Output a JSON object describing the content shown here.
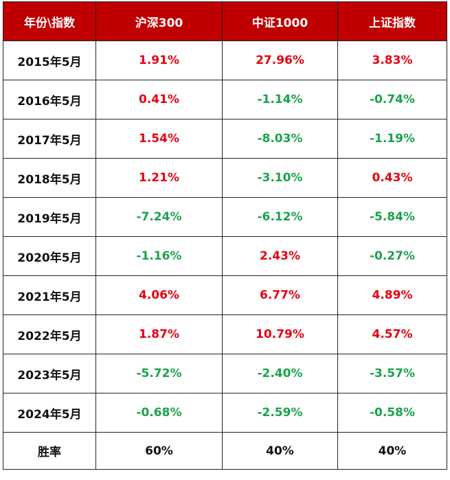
{
  "chart_data": {
    "type": "table",
    "columns": [
      "年份\\指数",
      "沪深300",
      "中证1000",
      "上证指数"
    ],
    "rows": [
      {
        "year": "2015年5月",
        "values": [
          "1.91%",
          "27.96%",
          "3.83%"
        ],
        "numeric": [
          1.91,
          27.96,
          3.83
        ]
      },
      {
        "year": "2016年5月",
        "values": [
          "0.41%",
          "-1.14%",
          "-0.74%"
        ],
        "numeric": [
          0.41,
          -1.14,
          -0.74
        ]
      },
      {
        "year": "2017年5月",
        "values": [
          "1.54%",
          "-8.03%",
          "-1.19%"
        ],
        "numeric": [
          1.54,
          -8.03,
          -1.19
        ]
      },
      {
        "year": "2018年5月",
        "values": [
          "1.21%",
          "-3.10%",
          "0.43%"
        ],
        "numeric": [
          1.21,
          -3.1,
          0.43
        ]
      },
      {
        "year": "2019年5月",
        "values": [
          "-7.24%",
          "-6.12%",
          "-5.84%"
        ],
        "numeric": [
          -7.24,
          -6.12,
          -5.84
        ]
      },
      {
        "year": "2020年5月",
        "values": [
          "-1.16%",
          "2.43%",
          "-0.27%"
        ],
        "numeric": [
          -1.16,
          2.43,
          -0.27
        ]
      },
      {
        "year": "2021年5月",
        "values": [
          "4.06%",
          "6.77%",
          "4.89%"
        ],
        "numeric": [
          4.06,
          6.77,
          4.89
        ]
      },
      {
        "year": "2022年5月",
        "values": [
          "1.87%",
          "10.79%",
          "4.57%"
        ],
        "numeric": [
          1.87,
          10.79,
          4.57
        ]
      },
      {
        "year": "2023年5月",
        "values": [
          "-5.72%",
          "-2.40%",
          "-3.57%"
        ],
        "numeric": [
          -5.72,
          -2.4,
          -3.57
        ]
      },
      {
        "year": "2024年5月",
        "values": [
          "-0.68%",
          "-2.59%",
          "-0.58%"
        ],
        "numeric": [
          -0.68,
          -2.59,
          -0.58
        ]
      }
    ],
    "summary": {
      "label": "胜率",
      "values": [
        "60%",
        "40%",
        "40%"
      ]
    }
  },
  "colors": {
    "header_bg": "#c00000",
    "header_text": "#ffffff",
    "positive": "#e60012",
    "negative": "#1aa24b",
    "border": "#222222"
  }
}
